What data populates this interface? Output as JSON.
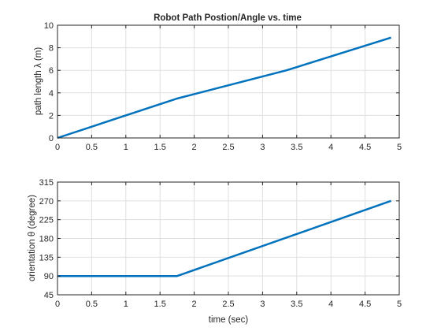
{
  "chart_data": [
    {
      "type": "line",
      "title": "Robot Path Postion/Angle vs. time",
      "xlabel": "",
      "ylabel": "path length λ (m)",
      "xlim": [
        0,
        5
      ],
      "ylim": [
        0,
        10
      ],
      "xticks": [
        "0",
        "0.5",
        "1",
        "1.5",
        "2",
        "2.5",
        "3",
        "3.5",
        "4",
        "4.5",
        "5"
      ],
      "yticks": [
        "0",
        "2",
        "4",
        "6",
        "8",
        "10"
      ],
      "grid": true,
      "color": "#0072BD",
      "series": [
        {
          "name": "path length",
          "x": [
            0,
            1.75,
            3.35,
            4.88
          ],
          "y": [
            0,
            3.5,
            6.0,
            8.9
          ]
        }
      ]
    },
    {
      "type": "line",
      "title": "",
      "xlabel": "time (sec)",
      "ylabel": "orientation θ (degree)",
      "xlim": [
        0,
        5
      ],
      "ylim": [
        45,
        315
      ],
      "xticks": [
        "0",
        "0.5",
        "1",
        "1.5",
        "2",
        "2.5",
        "3",
        "3.5",
        "4",
        "4.5",
        "5"
      ],
      "yticks": [
        "45",
        "90",
        "135",
        "180",
        "225",
        "270",
        "315"
      ],
      "grid": true,
      "color": "#0072BD",
      "series": [
        {
          "name": "orientation",
          "x": [
            0,
            1.75,
            4.88
          ],
          "y": [
            90,
            90,
            270
          ]
        }
      ]
    }
  ]
}
